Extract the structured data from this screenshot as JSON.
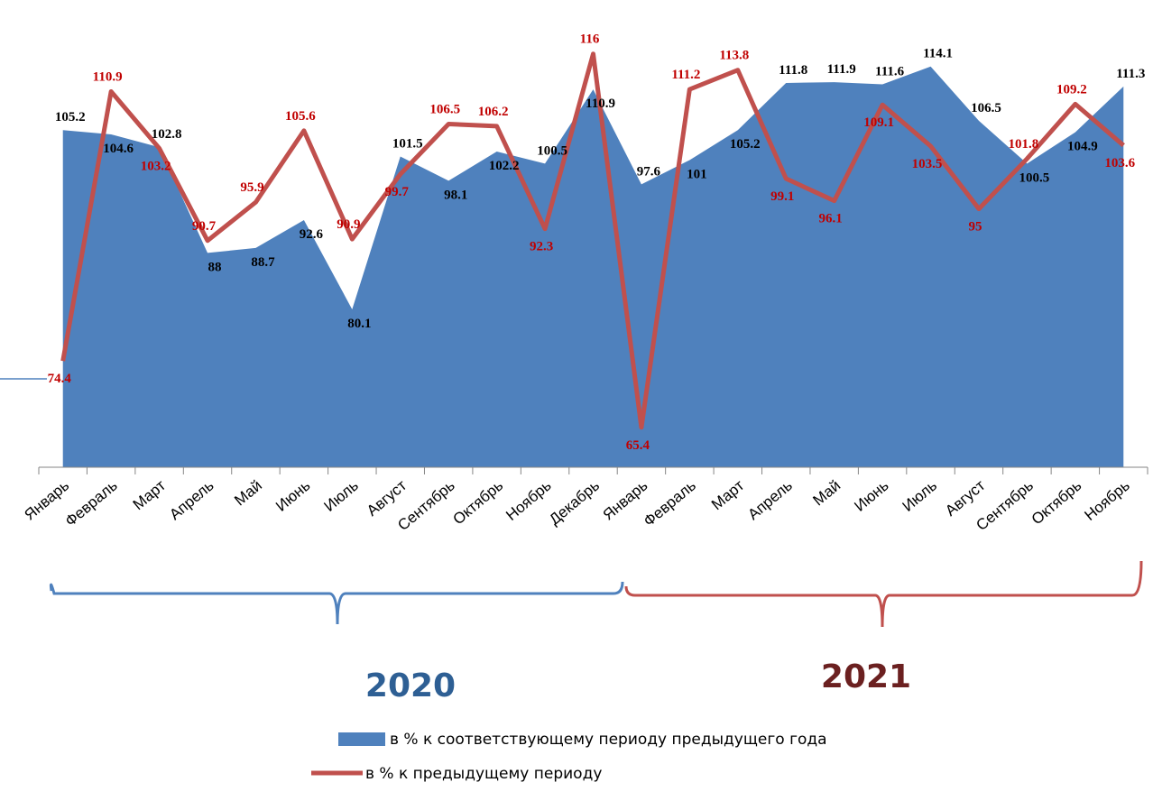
{
  "chart_data": {
    "type": "area-line",
    "categories": [
      "Январь",
      "Февраль",
      "Март",
      "Апрель",
      "Май",
      "Июнь",
      "Июль",
      "Август",
      "Сентябрь",
      "Октябрь",
      "Ноябрь",
      "Декабрь",
      "Январь",
      "Февраль",
      "Март",
      "Апрель",
      "Май",
      "Июнь",
      "Июль",
      "Август",
      "Сентябрь",
      "Октябрь",
      "Ноябрь"
    ],
    "series": [
      {
        "name": "в % к соответствующему периоду предыдущего года",
        "type": "area",
        "color": "#4f81bd",
        "values": [
          105.2,
          104.6,
          102.8,
          88,
          88.7,
          92.6,
          80.1,
          101.5,
          98.1,
          102.2,
          100.5,
          110.9,
          97.6,
          101,
          105.2,
          111.8,
          111.9,
          111.6,
          114.1,
          106.5,
          100.5,
          104.9,
          111.3
        ]
      },
      {
        "name": "в % к предыдущему периоду",
        "type": "line",
        "color": "#c0504d",
        "axis": "y2",
        "values": [
          74.4,
          110.9,
          103.2,
          90.7,
          95.9,
          105.6,
          90.9,
          99.7,
          106.5,
          106.2,
          92.3,
          116,
          65.4,
          111.2,
          113.8,
          99.1,
          96.1,
          109.1,
          103.5,
          95,
          101.8,
          109.2,
          103.6
        ]
      }
    ],
    "ylim": [
      58,
      120
    ],
    "y2lim": [
      60,
      120
    ],
    "annotations": [
      "2020",
      "2021"
    ]
  }
}
